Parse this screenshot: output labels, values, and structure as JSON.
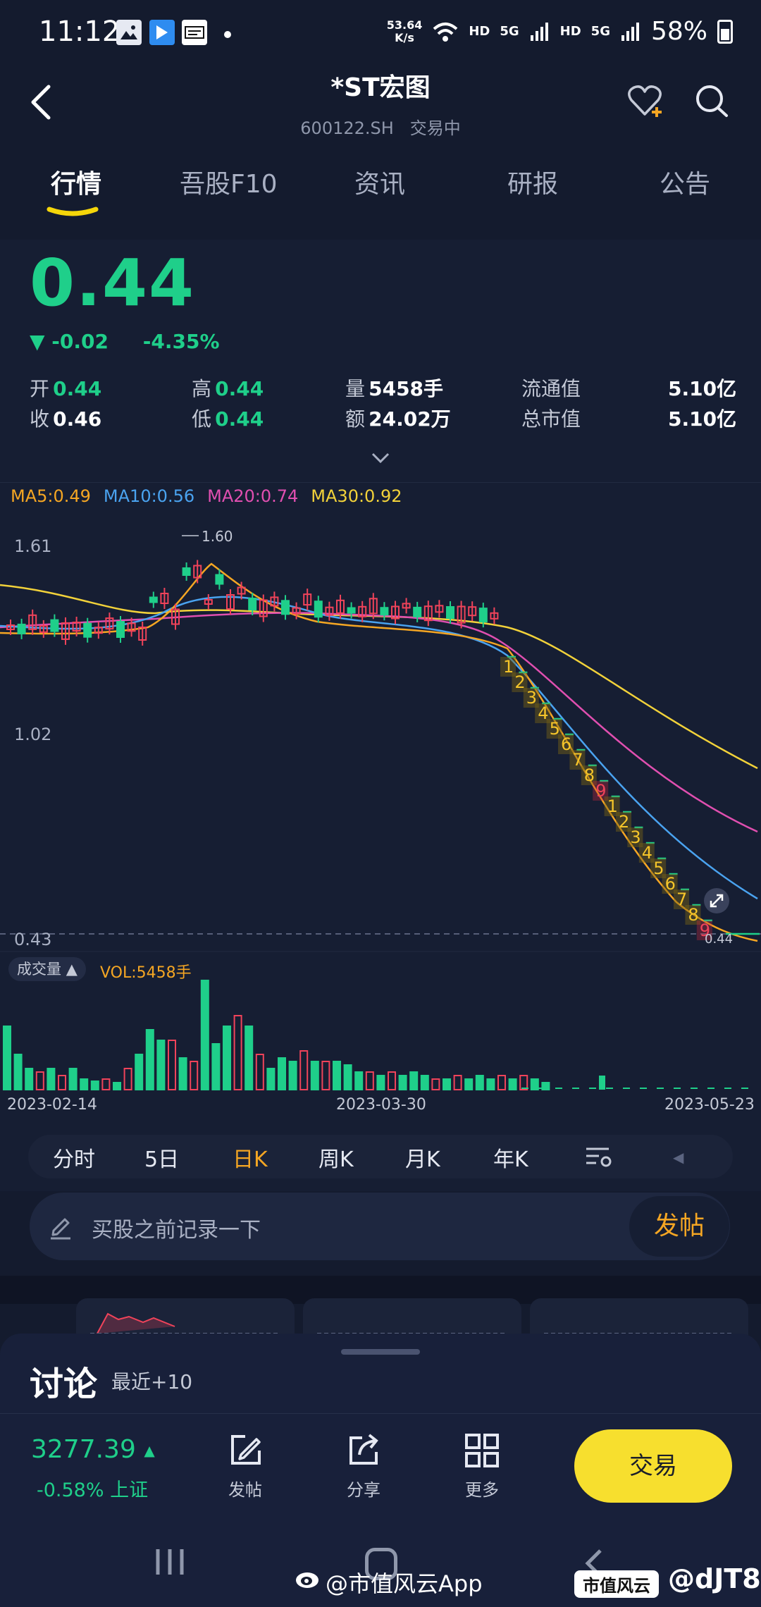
{
  "status_bar": {
    "time": "11:12",
    "net_speed_value": "53.64",
    "net_speed_unit": "K/s",
    "hd1": "HD",
    "net_type1": "5G",
    "hd2": "HD",
    "net_type2": "5G",
    "battery": "58%"
  },
  "header": {
    "title": "*ST宏图",
    "code": "600122.SH",
    "status": "交易中"
  },
  "tabs": [
    {
      "label": "行情"
    },
    {
      "label": "吾股F10"
    },
    {
      "label": "资讯"
    },
    {
      "label": "研报"
    },
    {
      "label": "公告"
    }
  ],
  "quote": {
    "price": "0.44",
    "change_arrow": "▼",
    "change": "-0.02",
    "change_pct": "-4.35%",
    "open_label": "开",
    "open": "0.44",
    "close_label": "收",
    "close": "0.46",
    "high_label": "高",
    "high": "0.44",
    "low_label": "低",
    "low": "0.44",
    "volume_label": "量",
    "volume": "5458手",
    "amount_label": "额",
    "amount": "24.02万",
    "float_cap_label": "流通值",
    "float_cap": "5.10亿",
    "total_cap_label": "总市值",
    "total_cap": "5.10亿"
  },
  "ma_legend": {
    "ma5": "MA5:0.49",
    "ma10": "MA10:0.56",
    "ma20": "MA20:0.74",
    "ma30": "MA30:0.92",
    "colors": {
      "ma5": "#f5a623",
      "ma10": "#4aa3f0",
      "ma20": "#e04fb0",
      "ma30": "#f2d23a"
    }
  },
  "chart_data": {
    "type": "candlestick",
    "y_labels": [
      "1.61",
      "1.02",
      "0.43"
    ],
    "high_marker": "1.60",
    "last_marker": "0.44",
    "sequence_labels": [
      "1",
      "2",
      "3",
      "4",
      "5",
      "6",
      "7",
      "8",
      "9",
      "1",
      "2",
      "3",
      "4",
      "5",
      "6",
      "7",
      "8",
      "9"
    ],
    "x_labels": [
      "2023-02-14",
      "2023-03-30",
      "2023-05-23"
    ],
    "volume_label": "成交量",
    "volume_value": "VOL:5458手",
    "up_color": "#f0435a",
    "down_color": "#1fcf8a"
  },
  "periods": [
    {
      "label": "分时"
    },
    {
      "label": "5日"
    },
    {
      "label": "日K"
    },
    {
      "label": "周K"
    },
    {
      "label": "月K"
    },
    {
      "label": "年K"
    }
  ],
  "note": {
    "placeholder": "买股之前记录一下",
    "post_button": "发帖"
  },
  "discussion": {
    "title": "讨论",
    "subtitle": "最近+10"
  },
  "bottom_toolbar": {
    "index_value": "3277.39",
    "index_change": "-0.58%",
    "index_name": "上证",
    "post_label": "发帖",
    "share_label": "分享",
    "more_label": "更多",
    "trade_button": "交易"
  },
  "watermark": {
    "left": "@市值风云App",
    "badge": "市值风云",
    "handle": "@dJT8"
  }
}
